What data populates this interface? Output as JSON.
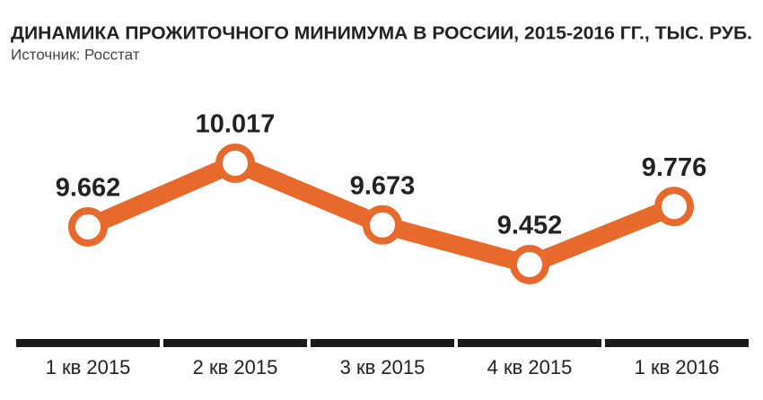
{
  "chart_data": {
    "type": "line",
    "title": "ДИНАМИКА ПРОЖИТОЧНОГО МИНИМУМА В РОССИИ, 2015-2016 ГГ., ТЫС. РУБ.",
    "subtitle": "Источник: Росстат",
    "categories": [
      "1 кв 2015",
      "2 кв 2015",
      "3 кв 2015",
      "4 кв 2015",
      "1 кв 2016"
    ],
    "values": [
      9.662,
      10.017,
      9.673,
      9.452,
      9.776
    ],
    "color": "#e8692c"
  }
}
